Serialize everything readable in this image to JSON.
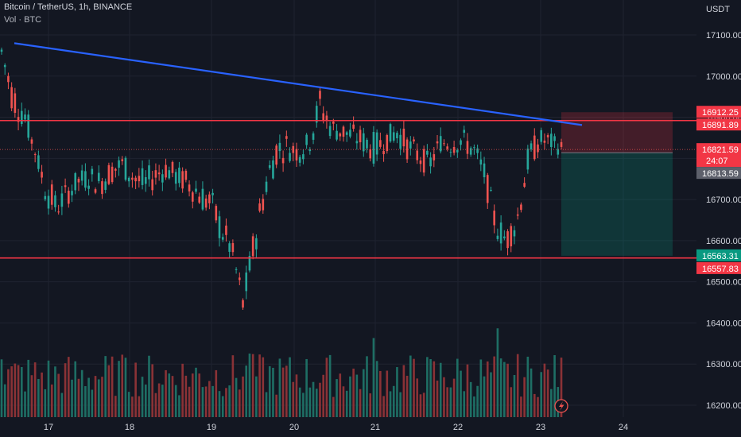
{
  "header": {
    "title": "Bitcoin / TetherUS, 1h, BINANCE",
    "volume": "Vol · BTC"
  },
  "chart_data": {
    "type": "candlestick",
    "currency": "USDT",
    "y_ticks": [
      17100,
      17000,
      16900,
      16800,
      16700,
      16600,
      16500,
      16400,
      16300,
      16200
    ],
    "y_tick_labels": [
      "17100.00",
      "17000.00",
      "16900.00",
      "16800.00",
      "16700.00",
      "16600.00",
      "16500.00",
      "16400.00",
      "16300.00",
      "16200.00"
    ],
    "x_ticks": [
      "17",
      "18",
      "19",
      "20",
      "21",
      "22",
      "23",
      "24"
    ],
    "ylim": [
      16170,
      17190
    ],
    "grid": true,
    "trendline": {
      "from": {
        "x": "16 18:00",
        "y": 17080
      },
      "to": {
        "x": "23 13:00",
        "y": 16883
      },
      "color": "#2962ff"
    },
    "horizontal_lines": [
      {
        "value": 16891.89,
        "color": "#f23645"
      },
      {
        "value": 16557.83,
        "color": "#f23645"
      }
    ],
    "position": {
      "entry": 16813.59,
      "stop": 16912.25,
      "target": 16563.31
    },
    "price_labels": [
      {
        "value": 16912.25,
        "text": "16912.25",
        "bg": "#f23645",
        "fg": "#ffffff"
      },
      {
        "value": 16891.89,
        "text": "16891.89",
        "bg": "#f23645",
        "fg": "#ffffff"
      },
      {
        "value": 16821.59,
        "text": "16821.59",
        "sub": "24:07",
        "bg": "#f23645",
        "fg": "#ffffff"
      },
      {
        "value": 16813.59,
        "text": "16813.59",
        "bg": "#5d606b",
        "fg": "#ffffff"
      },
      {
        "value": 16563.31,
        "text": "16563.31",
        "bg": "#089981",
        "fg": "#ffffff"
      },
      {
        "value": 16557.83,
        "text": "16557.83",
        "bg": "#f23645",
        "fg": "#ffffff"
      }
    ],
    "colors": {
      "up": "#26a69a",
      "down": "#ef5350",
      "vol_up": "#1e6e64",
      "vol_down": "#8a3236",
      "grid": "#1f2330",
      "bg": "#131722"
    },
    "seed_path": [
      [
        17040,
        17080
      ],
      [
        16920,
        16980
      ],
      [
        16880,
        16950
      ],
      [
        16820,
        16820
      ],
      [
        16700,
        16760
      ],
      [
        16660,
        16700
      ],
      [
        16700,
        16730
      ],
      [
        16730,
        16760
      ],
      [
        16740,
        16770
      ],
      [
        16720,
        16760
      ],
      [
        16750,
        16790
      ],
      [
        16770,
        16800
      ],
      [
        16730,
        16780
      ],
      [
        16710,
        16760
      ],
      [
        16740,
        16780
      ],
      [
        16760,
        16790
      ],
      [
        16740,
        16770
      ],
      [
        16720,
        16760
      ],
      [
        16690,
        16740
      ],
      [
        16660,
        16720
      ],
      [
        16600,
        16660
      ],
      [
        16560,
        16590
      ],
      [
        16420,
        16470
      ],
      [
        16560,
        16620
      ],
      [
        16700,
        16760
      ],
      [
        16790,
        16850
      ],
      [
        16810,
        16850
      ],
      [
        16800,
        16830
      ],
      [
        16820,
        16850
      ],
      [
        16900,
        16960
      ],
      [
        16860,
        16890
      ],
      [
        16850,
        16880
      ],
      [
        16840,
        16870
      ],
      [
        16820,
        16860
      ],
      [
        16800,
        16850
      ],
      [
        16830,
        16860
      ],
      [
        16850,
        16880
      ],
      [
        16810,
        16850
      ],
      [
        16790,
        16820
      ],
      [
        16770,
        16800
      ],
      [
        16830,
        16850
      ],
      [
        16820,
        16850
      ],
      [
        16830,
        16860
      ],
      [
        16800,
        16840
      ],
      [
        16740,
        16780
      ],
      [
        16620,
        16660
      ],
      [
        16580,
        16620
      ],
      [
        16630,
        16680
      ],
      [
        16780,
        16820
      ],
      [
        16830,
        16860
      ],
      [
        16830,
        16850
      ],
      [
        16820,
        16830
      ]
    ]
  }
}
